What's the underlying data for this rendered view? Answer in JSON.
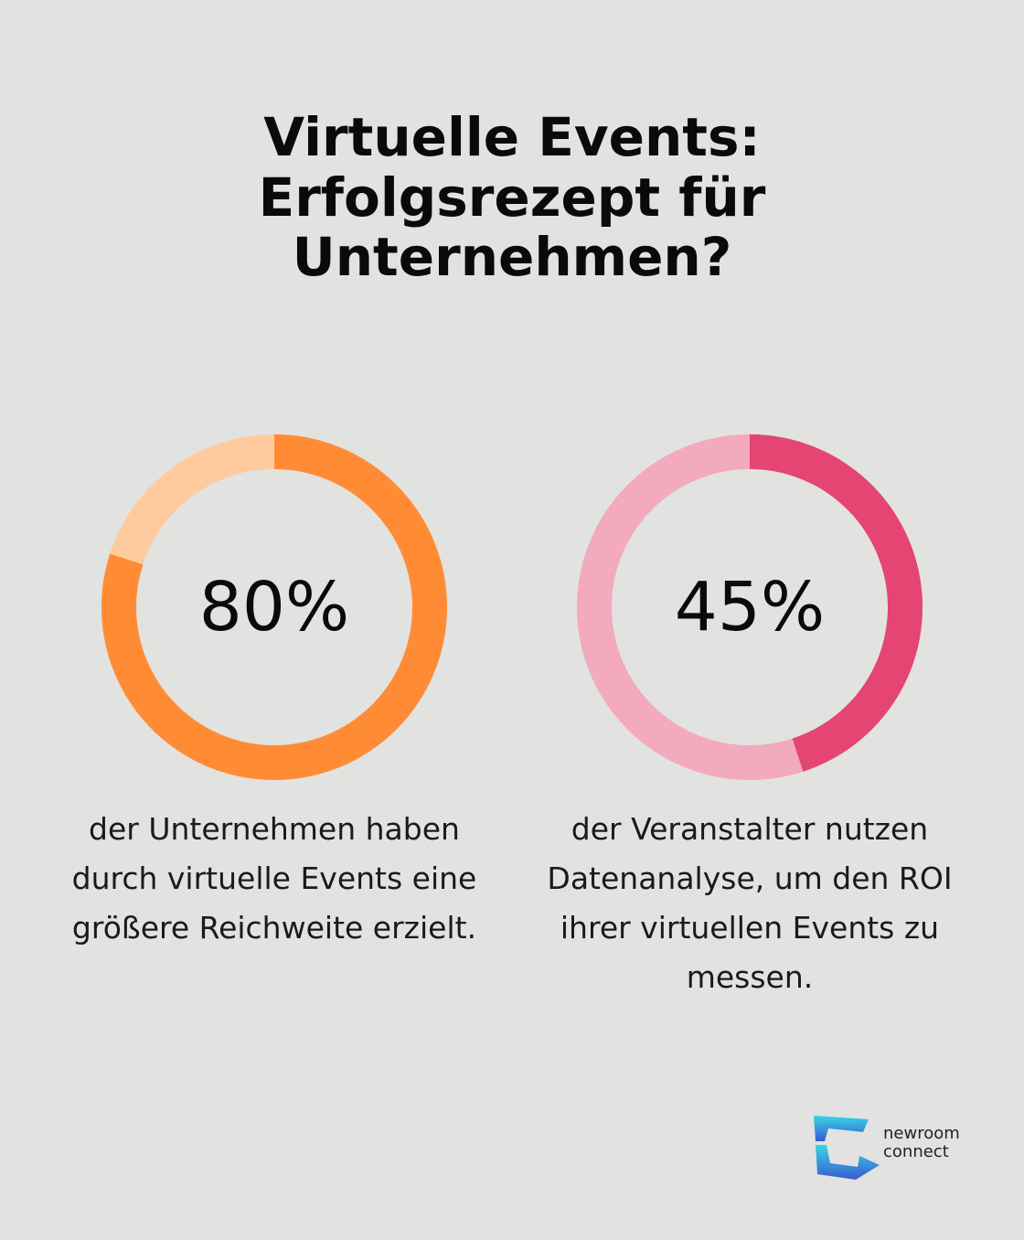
{
  "title_lines": [
    "Virtuelle Events:",
    "Erfolgsrezept für",
    "Unternehmen?"
  ],
  "chart_data": [
    {
      "type": "pie",
      "variant": "donut",
      "value": 80,
      "label": "80%",
      "caption_lines": [
        "der Unternehmen haben",
        "durch virtuelle Events eine",
        "größere Reichweite erzielt."
      ],
      "colors": {
        "filled": "#ff8c35",
        "remaining": "#ffcb9e"
      }
    },
    {
      "type": "pie",
      "variant": "donut",
      "value": 45,
      "label": "45%",
      "caption_lines": [
        "der Veranstalter nutzen",
        "Datenanalyse, um den ROI",
        "ihrer virtuellen Events zu",
        "messen."
      ],
      "colors": {
        "filled": "#e44572",
        "remaining": "#f3a9be"
      }
    }
  ],
  "brand": {
    "lines": [
      "newroom",
      "connect"
    ],
    "icon": "newroom-connect-logo-icon",
    "colors": {
      "top": "#38d6e6",
      "bottom": "#3a5bd0"
    }
  }
}
